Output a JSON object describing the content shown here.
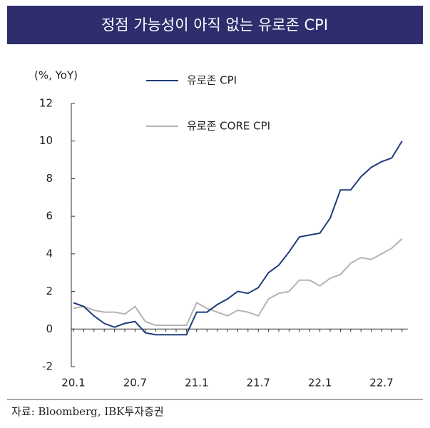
{
  "chart_data": {
    "type": "line",
    "title": "정점 가능성이 아직 없는 유로존 CPI",
    "y_label": "(%, YoY)",
    "source": "자료: Bloomberg, IBK투자증권",
    "categories": [
      "20.1",
      null,
      null,
      null,
      null,
      null,
      "20.7",
      null,
      null,
      null,
      null,
      null,
      "21.1",
      null,
      null,
      null,
      null,
      null,
      "21.7",
      null,
      null,
      null,
      null,
      null,
      "22.1",
      null,
      null,
      null,
      null,
      null,
      "22.7",
      null,
      null
    ],
    "series": [
      {
        "name": "유로존 CPI",
        "color": "#1f3d7a",
        "values": [
          1.4,
          1.2,
          0.7,
          0.3,
          0.1,
          0.3,
          0.4,
          -0.2,
          -0.3,
          -0.3,
          -0.3,
          -0.3,
          0.9,
          0.9,
          1.3,
          1.6,
          2.0,
          1.9,
          2.2,
          3.0,
          3.4,
          4.1,
          4.9,
          5.0,
          5.1,
          5.9,
          7.4,
          7.4,
          8.1,
          8.6,
          8.9,
          9.1,
          10.0
        ]
      },
      {
        "name": "유로존 CORE CPI",
        "color": "#b3b3b3",
        "values": [
          1.1,
          1.2,
          1.0,
          0.9,
          0.9,
          0.8,
          1.2,
          0.4,
          0.2,
          0.2,
          0.2,
          0.2,
          1.4,
          1.1,
          0.9,
          0.7,
          1.0,
          0.9,
          0.7,
          1.6,
          1.9,
          2.0,
          2.6,
          2.6,
          2.3,
          2.7,
          2.9,
          3.5,
          3.8,
          3.7,
          4.0,
          4.3,
          4.8
        ]
      }
    ],
    "ylim": [
      -2,
      12
    ],
    "yticks": [
      -2,
      0,
      2,
      4,
      6,
      8,
      10,
      12
    ]
  }
}
